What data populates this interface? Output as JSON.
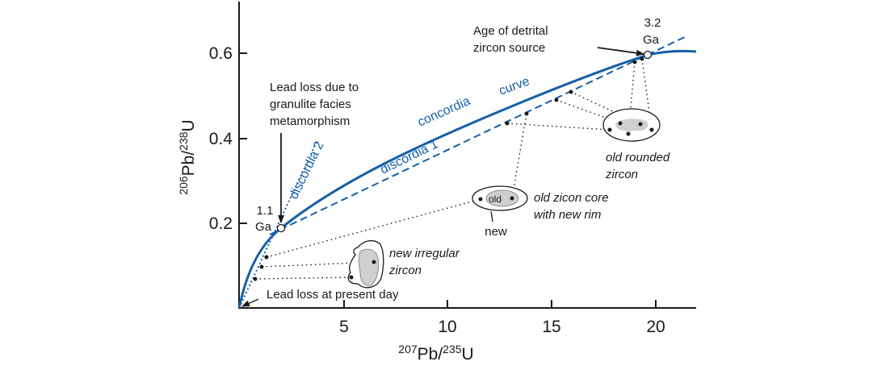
{
  "colors": {
    "curve": "#1560a8",
    "axis": "#1a1a1a",
    "zircon_core": "#cfcfcf"
  },
  "axes": {
    "x_label": {
      "sup1": "207",
      "main1": "Pb/",
      "sup2": "235",
      "main2": "U"
    },
    "y_label": {
      "sup1": "206",
      "main1": "Pb/",
      "sup2": "238",
      "main2": "U"
    },
    "x_ticks": [
      "5",
      "10",
      "15",
      "20"
    ],
    "y_ticks": [
      "0.2",
      "0.4",
      "0.6"
    ]
  },
  "curves": {
    "concordia_1": "concordia",
    "concordia_2": "curve",
    "discordia_1": "discordia 1",
    "discordia_2": "discordia 2"
  },
  "annotations": {
    "age_source_1": "Age of detrital",
    "age_source_2": "zircon source",
    "age_32_1": "3.2",
    "age_32_2": "Ga",
    "age_11_1": "1.1",
    "age_11_2": "Ga",
    "lead_loss_granulite_1": "Lead loss due to",
    "lead_loss_granulite_2": "granulite facies",
    "lead_loss_granulite_3": "metamorphism",
    "lead_loss_present": "Lead loss at present day",
    "new_irregular_1": "new irregular",
    "new_irregular_2": "zircon",
    "old_core_1": "old zicon core",
    "old_core_2": "with new rim",
    "old_label": "old",
    "new_label": "new",
    "old_rounded_1": "old rounded",
    "old_rounded_2": "zircon"
  }
}
